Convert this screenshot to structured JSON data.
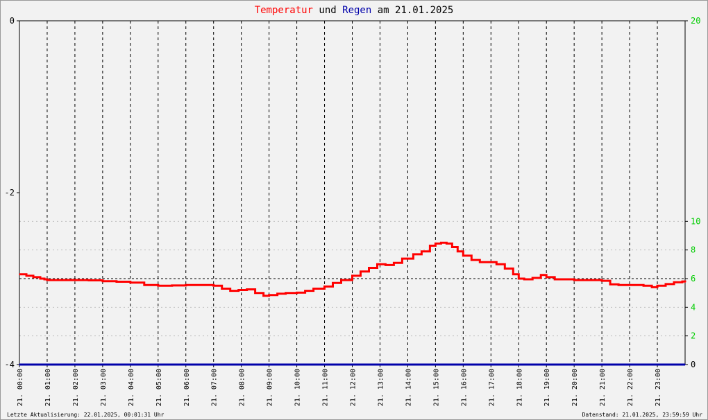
{
  "title": {
    "part1": "Temperatur",
    "part2": " und ",
    "part3": "Regen",
    "part4": " am 21.01.2025"
  },
  "footer": {
    "left": "Letzte Aktualisierung: 22.01.2025, 00:01:31 Uhr",
    "right": "Datenstand: 21.01.2025, 23:59:59 Uhr"
  },
  "colors": {
    "temperature": "#ff0000",
    "rain": "#0000aa",
    "right_axis_ticks": "#00cc00",
    "left_axis_ticks": "#000000",
    "grid": "#000000"
  },
  "chart_data": {
    "type": "line",
    "xlabel": "",
    "ylabel": "",
    "x_ticks": [
      "21. 00:00",
      "21. 01:00",
      "21. 02:00",
      "21. 03:00",
      "21. 04:00",
      "21. 05:00",
      "21. 06:00",
      "21. 07:00",
      "21. 08:00",
      "21. 09:00",
      "21. 10:00",
      "21. 11:00",
      "21. 12:00",
      "21. 13:00",
      "21. 14:00",
      "21. 15:00",
      "21. 16:00",
      "21. 17:00",
      "21. 18:00",
      "21. 19:00",
      "21. 20:00",
      "21. 21:00",
      "21. 22:00",
      "21. 23:00"
    ],
    "x_range_hours": [
      0,
      24
    ],
    "left_axis": {
      "ticks": [
        0,
        -2,
        -4
      ],
      "ylim": [
        -4,
        0
      ]
    },
    "right_axis": {
      "ticks": [
        0,
        2,
        4,
        6,
        8,
        10,
        20
      ],
      "scale_note": "piecewise"
    },
    "grid": true,
    "series": [
      {
        "name": "Temperatur",
        "axis": "right",
        "x_hours": [
          0.0,
          0.25,
          0.5,
          0.75,
          0.9,
          1.0,
          1.5,
          2.0,
          2.5,
          3.0,
          3.5,
          4.0,
          4.5,
          5.0,
          5.5,
          6.0,
          6.5,
          7.0,
          7.3,
          7.6,
          7.9,
          8.2,
          8.5,
          8.8,
          9.0,
          9.3,
          9.6,
          10.0,
          10.3,
          10.6,
          11.0,
          11.3,
          11.6,
          12.0,
          12.3,
          12.6,
          12.9,
          13.2,
          13.5,
          13.8,
          14.2,
          14.5,
          14.8,
          15.0,
          15.2,
          15.4,
          15.6,
          15.8,
          16.0,
          16.3,
          16.6,
          16.9,
          17.2,
          17.5,
          17.8,
          18.0,
          18.2,
          18.5,
          18.8,
          19.0,
          19.3,
          19.6,
          20.0,
          20.5,
          21.0,
          21.3,
          21.6,
          22.0,
          22.5,
          22.8,
          23.0,
          23.3,
          23.6,
          23.9,
          24.0
        ],
        "values": [
          6.3,
          6.2,
          6.1,
          6.0,
          5.95,
          5.9,
          5.9,
          5.9,
          5.88,
          5.82,
          5.78,
          5.72,
          5.55,
          5.5,
          5.52,
          5.55,
          5.55,
          5.5,
          5.3,
          5.15,
          5.2,
          5.25,
          5.0,
          4.8,
          4.85,
          4.95,
          5.0,
          5.02,
          5.15,
          5.3,
          5.45,
          5.7,
          5.9,
          6.2,
          6.5,
          6.75,
          7.0,
          6.95,
          7.1,
          7.4,
          7.7,
          7.9,
          8.3,
          8.45,
          8.5,
          8.45,
          8.2,
          7.9,
          7.6,
          7.3,
          7.15,
          7.15,
          7.0,
          6.7,
          6.3,
          6.0,
          5.95,
          6.05,
          6.25,
          6.1,
          5.95,
          5.95,
          5.9,
          5.9,
          5.85,
          5.6,
          5.55,
          5.55,
          5.5,
          5.4,
          5.5,
          5.62,
          5.75,
          5.8,
          5.75
        ]
      },
      {
        "name": "Regen",
        "axis": "right",
        "x_hours": [
          0,
          24
        ],
        "values": [
          0,
          0
        ]
      }
    ]
  }
}
